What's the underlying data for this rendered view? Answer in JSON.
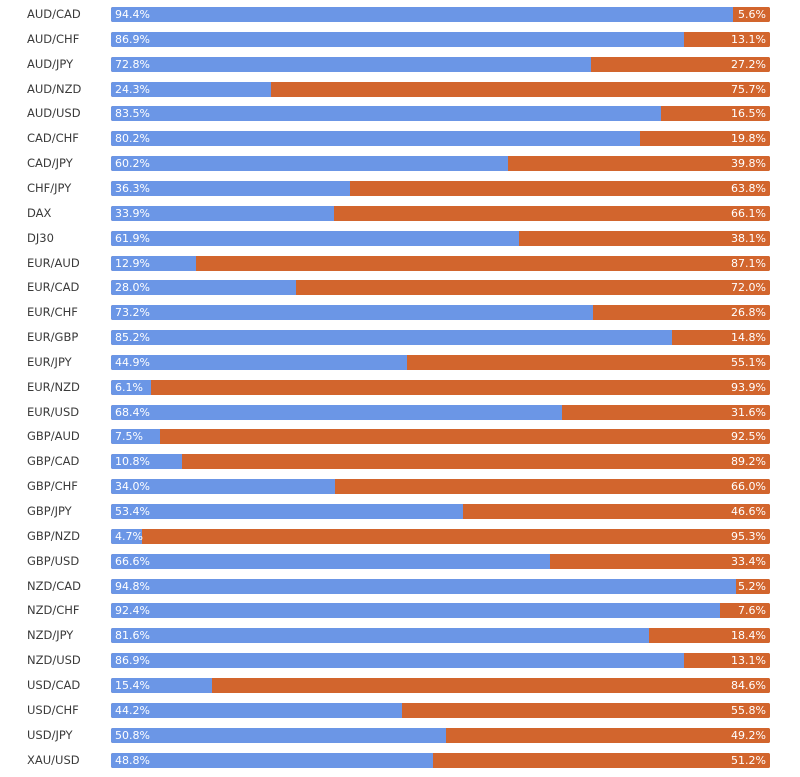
{
  "chart_data": {
    "type": "bar",
    "orientation": "horizontal",
    "stacked": true,
    "categories": [
      "AUD/CAD",
      "AUD/CHF",
      "AUD/JPY",
      "AUD/NZD",
      "AUD/USD",
      "CAD/CHF",
      "CAD/JPY",
      "CHF/JPY",
      "DAX",
      "DJ30",
      "EUR/AUD",
      "EUR/CAD",
      "EUR/CHF",
      "EUR/GBP",
      "EUR/JPY",
      "EUR/NZD",
      "EUR/USD",
      "GBP/AUD",
      "GBP/CAD",
      "GBP/CHF",
      "GBP/JPY",
      "GBP/NZD",
      "GBP/USD",
      "NZD/CAD",
      "NZD/CHF",
      "NZD/JPY",
      "NZD/USD",
      "USD/CAD",
      "USD/CHF",
      "USD/JPY",
      "XAU/USD"
    ],
    "series": [
      {
        "color": "#6b96e6",
        "values": [
          94.4,
          86.9,
          72.8,
          24.3,
          83.5,
          80.2,
          60.2,
          36.3,
          33.9,
          61.9,
          12.9,
          28.0,
          73.2,
          85.2,
          44.9,
          6.1,
          68.4,
          7.5,
          10.8,
          34.0,
          53.4,
          4.7,
          66.6,
          94.8,
          92.4,
          81.6,
          86.9,
          15.4,
          44.2,
          50.8,
          48.8
        ],
        "labels": [
          "94.4%",
          "86.9%",
          "72.8%",
          "24.3%",
          "83.5%",
          "80.2%",
          "60.2%",
          "36.3%",
          "33.9%",
          "61.9%",
          "12.9%",
          "28.0%",
          "73.2%",
          "85.2%",
          "44.9%",
          "6.1%",
          "68.4%",
          "7.5%",
          "10.8%",
          "34.0%",
          "53.4%",
          "4.7%",
          "66.6%",
          "94.8%",
          "92.4%",
          "81.6%",
          "86.9%",
          "15.4%",
          "44.2%",
          "50.8%",
          "48.8%"
        ]
      },
      {
        "color": "#d2652d",
        "values": [
          5.6,
          13.1,
          27.2,
          75.7,
          16.5,
          19.8,
          39.8,
          63.8,
          66.1,
          38.1,
          87.1,
          72.0,
          26.8,
          14.8,
          55.1,
          93.9,
          31.6,
          92.5,
          89.2,
          66.0,
          46.6,
          95.3,
          33.4,
          5.2,
          7.6,
          18.4,
          13.1,
          84.6,
          55.8,
          49.2,
          51.2
        ],
        "labels": [
          "5.6%",
          "13.1%",
          "27.2%",
          "75.7%",
          "16.5%",
          "19.8%",
          "39.8%",
          "63.8%",
          "66.1%",
          "38.1%",
          "87.1%",
          "72.0%",
          "26.8%",
          "14.8%",
          "55.1%",
          "93.9%",
          "31.6%",
          "92.5%",
          "89.2%",
          "66.0%",
          "46.6%",
          "95.3%",
          "33.4%",
          "5.2%",
          "7.6%",
          "18.4%",
          "13.1%",
          "84.6%",
          "55.8%",
          "49.2%",
          "51.2%"
        ]
      }
    ],
    "xlim": [
      0,
      100
    ],
    "grid": false
  }
}
